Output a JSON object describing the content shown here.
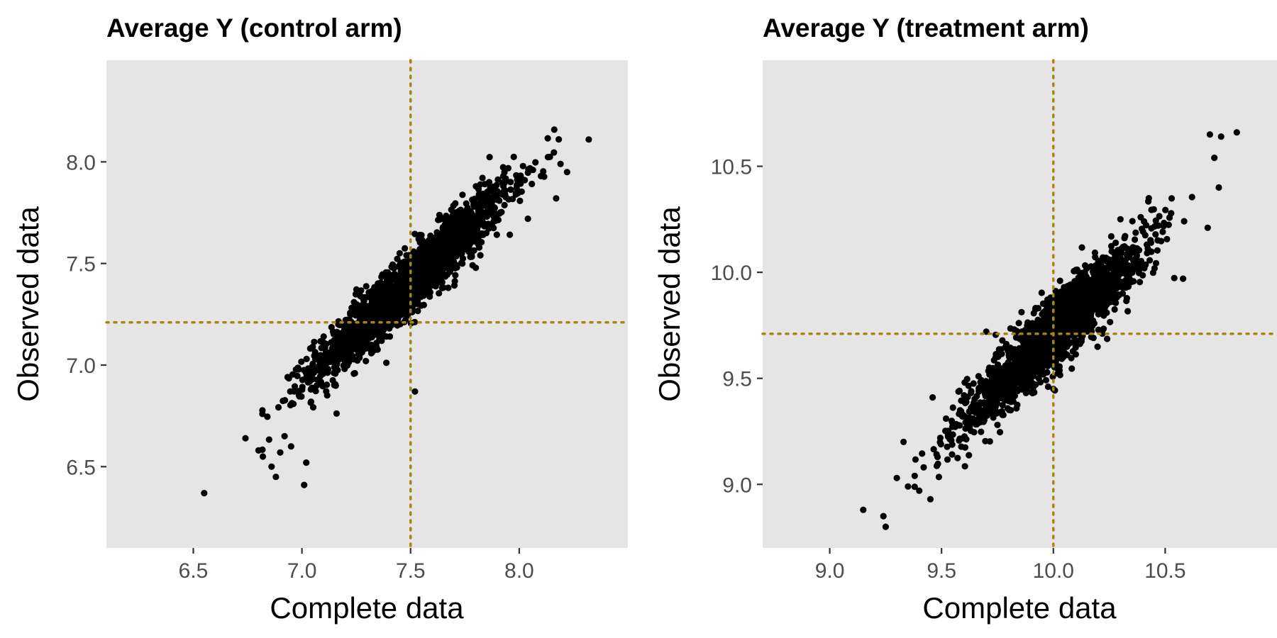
{
  "colors": {
    "panel_background": "#e5e5e5",
    "points": "#000000",
    "reference_lines": "#a8860e",
    "tick_labels": "#4d4d4d"
  },
  "chart_data": [
    {
      "type": "scatter",
      "title": "Average Y (control arm)",
      "xlabel": "Complete data",
      "ylabel": "Observed data",
      "xlim": [
        6.1,
        8.5
      ],
      "ylim": [
        6.1,
        8.5
      ],
      "xticks": [
        "6.5",
        "7.0",
        "7.5",
        "8.0"
      ],
      "yticks": [
        "6.5",
        "7.0",
        "7.5",
        "8.0"
      ],
      "grid": false,
      "reference_lines": {
        "x": 7.5,
        "y": 7.21,
        "style": "dotted"
      },
      "point_cloud": {
        "n": 2000,
        "x_mean": 7.5,
        "x_sd": 0.22,
        "slope": 0.98,
        "intercept": 0.06,
        "residual_sd": 0.075
      },
      "points": [
        [
          6.55,
          6.37
        ],
        [
          6.74,
          6.64
        ],
        [
          6.8,
          6.58
        ],
        [
          6.82,
          6.55
        ],
        [
          6.86,
          6.5
        ],
        [
          6.88,
          6.45
        ],
        [
          6.9,
          6.57
        ],
        [
          6.92,
          6.65
        ],
        [
          6.95,
          6.6
        ],
        [
          7.01,
          6.41
        ],
        [
          7.02,
          6.52
        ],
        [
          8.32,
          8.11
        ],
        [
          8.19,
          7.99
        ],
        [
          8.22,
          7.95
        ],
        [
          8.1,
          7.93
        ],
        [
          8.17,
          7.82
        ],
        [
          8.04,
          7.72
        ],
        [
          7.52,
          6.87
        ],
        [
          7.45,
          7.55
        ],
        [
          7.56,
          7.57
        ],
        [
          7.08,
          7.02
        ],
        [
          7.12,
          6.98
        ],
        [
          7.3,
          7.22
        ]
      ]
    },
    {
      "type": "scatter",
      "title": "Average Y (treatment arm)",
      "xlabel": "Complete data",
      "ylabel": "Observed data",
      "xlim": [
        8.7,
        11.0
      ],
      "ylim": [
        8.7,
        11.0
      ],
      "xticks": [
        "9.0",
        "9.5",
        "10.0",
        "10.5"
      ],
      "yticks": [
        "9.0",
        "9.5",
        "10.0",
        "10.5"
      ],
      "grid": false,
      "reference_lines": {
        "x": 10.0,
        "y": 9.71,
        "style": "dotted"
      },
      "point_cloud": {
        "n": 2000,
        "x_mean": 10.0,
        "x_sd": 0.2,
        "slope": 0.98,
        "intercept": -0.09,
        "residual_sd": 0.08
      },
      "points": [
        [
          9.15,
          8.88
        ],
        [
          9.24,
          8.85
        ],
        [
          9.25,
          8.8
        ],
        [
          9.3,
          9.03
        ],
        [
          9.33,
          9.2
        ],
        [
          9.35,
          8.99
        ],
        [
          9.38,
          9.04
        ],
        [
          9.4,
          8.97
        ],
        [
          9.42,
          9.08
        ],
        [
          9.45,
          8.93
        ],
        [
          9.46,
          9.41
        ],
        [
          10.82,
          10.66
        ],
        [
          10.75,
          10.64
        ],
        [
          10.7,
          10.65
        ],
        [
          10.72,
          10.54
        ],
        [
          10.74,
          10.4
        ],
        [
          10.69,
          10.21
        ],
        [
          10.58,
          9.97
        ],
        [
          10.0,
          9.45
        ],
        [
          10.03,
          9.96
        ],
        [
          9.7,
          9.72
        ],
        [
          10.3,
          10.25
        ]
      ]
    }
  ]
}
